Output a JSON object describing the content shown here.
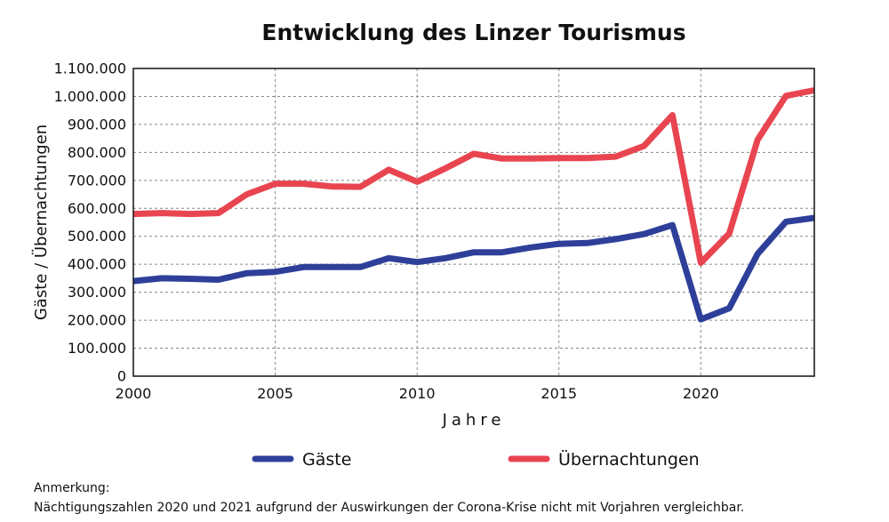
{
  "chart_data": {
    "type": "line",
    "title": "Entwicklung des Linzer Tourismus",
    "xlabel": "Jahre",
    "ylabel": "Gäste / Übernachtungen",
    "xlim": [
      2000,
      2024
    ],
    "ylim": [
      0,
      1100000
    ],
    "x_ticks": [
      "2000",
      "2005",
      "2010",
      "2015",
      "2020"
    ],
    "y_ticks": [
      "0",
      "100.000",
      "200.000",
      "300.000",
      "400.000",
      "500.000",
      "600.000",
      "700.000",
      "800.000",
      "900.000",
      "1.000.000",
      "1.100.000"
    ],
    "grid": true,
    "legend_position": "bottom",
    "x": [
      2000,
      2001,
      2002,
      2003,
      2004,
      2005,
      2006,
      2007,
      2008,
      2009,
      2010,
      2011,
      2012,
      2013,
      2014,
      2015,
      2016,
      2017,
      2018,
      2019,
      2020,
      2021,
      2022,
      2023,
      2024
    ],
    "series": [
      {
        "name": "Gäste",
        "color": "#2e3f99",
        "values": [
          340000,
          350000,
          348000,
          345000,
          368000,
          373000,
          390000,
          390000,
          390000,
          422000,
          408000,
          422000,
          443000,
          443000,
          460000,
          473000,
          476000,
          490000,
          508000,
          540000,
          203000,
          243000,
          437000,
          552000,
          566000
        ]
      },
      {
        "name": "Übernachtungen",
        "color": "#e84550",
        "values": [
          580000,
          583000,
          580000,
          583000,
          650000,
          688000,
          688000,
          678000,
          677000,
          738000,
          695000,
          743000,
          795000,
          778000,
          778000,
          780000,
          780000,
          785000,
          823000,
          933000,
          405000,
          510000,
          845000,
          1002000,
          1022000
        ]
      }
    ]
  },
  "note": {
    "heading": "Anmerkung:",
    "text": "Nächtigungszahlen 2020 und 2021 aufgrund der Auswirkungen der Corona-Krise nicht mit Vorjahren vergleichbar."
  }
}
